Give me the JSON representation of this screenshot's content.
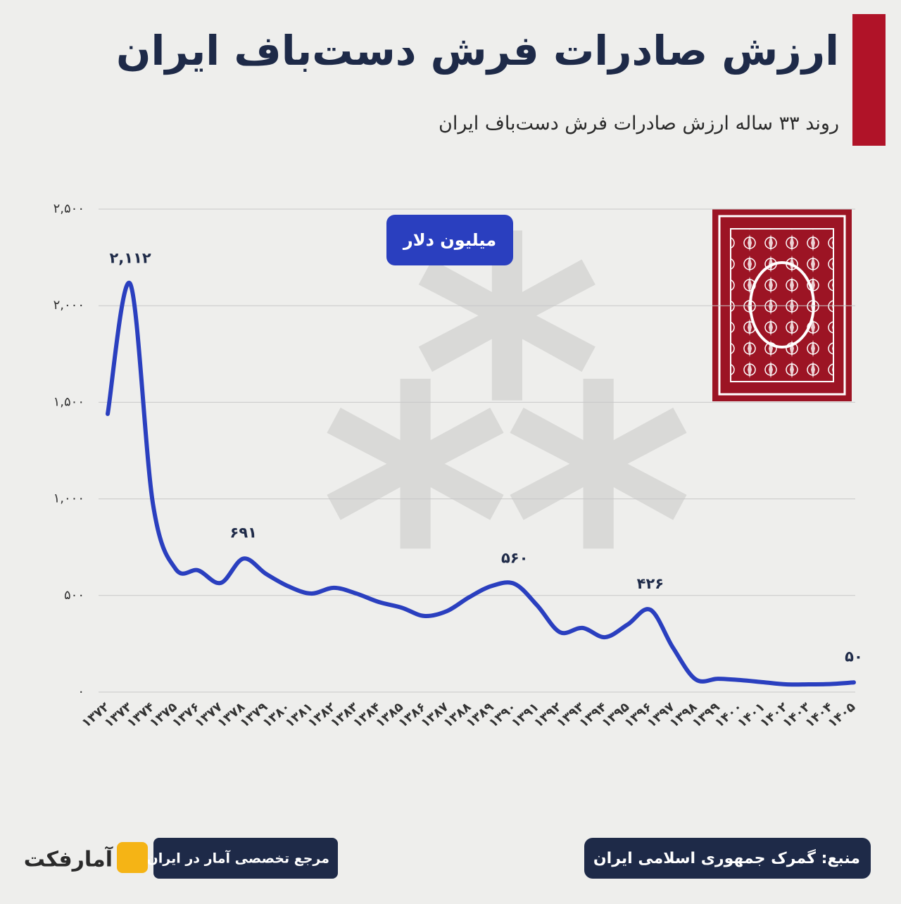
{
  "chart_data": {
    "type": "line",
    "title": "ارزش صادرات فرش دست‌باف ایران",
    "subtitle": "روند ۳۳ ساله ارزش صادرات فرش دست‌باف ایران",
    "unit_label": "میلیون دلار",
    "categories": [
      "۱۳۷۲",
      "۱۳۷۳",
      "۱۳۷۴",
      "۱۳۷۵",
      "۱۳۷۶",
      "۱۳۷۷",
      "۱۳۷۸",
      "۱۳۷۹",
      "۱۳۸۰",
      "۱۳۸۱",
      "۱۳۸۲",
      "۱۳۸۳",
      "۱۳۸۴",
      "۱۳۸۵",
      "۱۳۸۶",
      "۱۳۸۷",
      "۱۳۸۸",
      "۱۳۸۹",
      "۱۳۹۰",
      "۱۳۹۱",
      "۱۳۹۲",
      "۱۳۹۳",
      "۱۳۹۴",
      "۱۳۹۵",
      "۱۳۹۶",
      "۱۳۹۷",
      "۱۳۹۸",
      "۱۳۹۹",
      "۱۴۰۰",
      "۱۴۰۱",
      "۱۴۰۲",
      "۱۴۰۳",
      "۱۴۰۴",
      "۱۴۰۵"
    ],
    "series": [
      {
        "color": "#2a3fbf",
        "values": [
          1440,
          2112,
          975,
          638,
          630,
          565,
          691,
          612,
          547,
          510,
          540,
          510,
          466,
          437,
          394,
          419,
          492,
          550,
          560,
          448,
          310,
          332,
          284,
          350,
          426,
          230,
          66,
          69,
          62,
          51,
          40,
          40,
          42,
          50
        ],
        "value_labels": [
          null,
          "۲,۱۱۲",
          null,
          null,
          null,
          null,
          "۶۹۱",
          null,
          null,
          null,
          null,
          null,
          null,
          null,
          null,
          null,
          null,
          null,
          "۵۶۰",
          null,
          null,
          null,
          null,
          null,
          "۴۲۶",
          null,
          null,
          null,
          null,
          null,
          null,
          null,
          null,
          "۵۰"
        ]
      }
    ],
    "ylim": [
      0,
      2500
    ],
    "yticks": [
      {
        "value": 0,
        "label": "۰"
      },
      {
        "value": 500,
        "label": "۵۰۰"
      },
      {
        "value": 1000,
        "label": "۱,۰۰۰"
      },
      {
        "value": 1500,
        "label": "۱,۵۰۰"
      },
      {
        "value": 2000,
        "label": "۲,۰۰۰"
      },
      {
        "value": 2500,
        "label": "۲,۵۰۰"
      }
    ],
    "grid": true,
    "source": "منبع: گمرک جمهوری اسلامی ایران",
    "tagline": "مرجع تخصصی آمار در ایران",
    "brand": "آمارفکت"
  }
}
